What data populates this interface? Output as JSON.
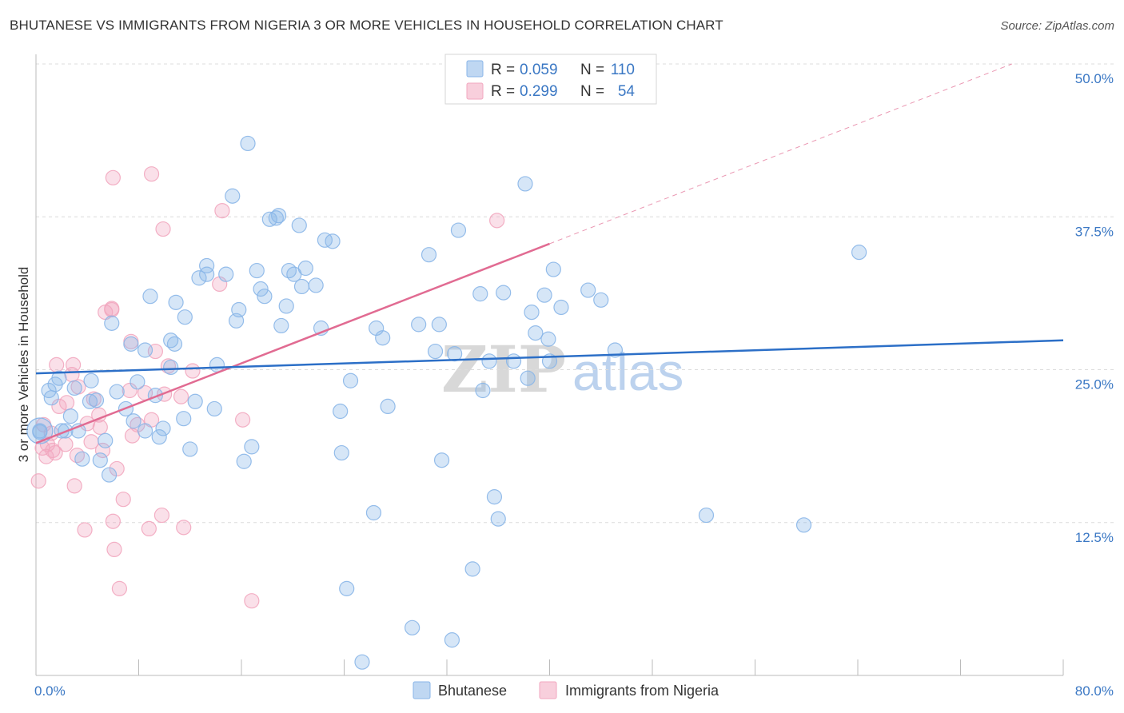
{
  "title": "BHUTANESE VS IMMIGRANTS FROM NIGERIA 3 OR MORE VEHICLES IN HOUSEHOLD CORRELATION CHART",
  "source": "Source: ZipAtlas.com",
  "watermark": {
    "part1": "ZIP",
    "part2": "atlas"
  },
  "legend_top": {
    "rows": [
      {
        "r_label": "R =",
        "r_value": "0.059",
        "n_label": "N =",
        "n_value": "110",
        "color": "#8ab6e8"
      },
      {
        "r_label": "R =",
        "r_value": "0.299",
        "n_label": "N =",
        "n_value": "54",
        "color": "#f2a7bf"
      }
    ]
  },
  "legend_bottom": [
    {
      "label": "Bhutanese",
      "color": "#8ab6e8"
    },
    {
      "label": "Immigrants from Nigeria",
      "color": "#f2a7bf"
    }
  ],
  "chart_data": {
    "type": "scatter",
    "xlabel": "",
    "ylabel": "3 or more Vehicles in Household",
    "xlim": [
      0,
      80
    ],
    "ylim": [
      0,
      50
    ],
    "x_tick_labels": [
      "0.0%",
      "80.0%"
    ],
    "y_tick_labels": [
      "12.5%",
      "25.0%",
      "37.5%",
      "50.0%"
    ],
    "y_ticks": [
      12.5,
      25.0,
      37.5,
      50.0
    ],
    "grid": true,
    "legend_position": "top-center",
    "series": [
      {
        "name": "Bhutanese",
        "color": "#8ab6e8",
        "line_color": "#2c6fc7",
        "trend": {
          "x0": 0,
          "y0": 24.7,
          "x1": 80,
          "y1": 27.4
        },
        "points": [
          [
            0.3,
            19.9
          ],
          [
            1.0,
            23.3
          ],
          [
            1.2,
            22.7
          ],
          [
            1.5,
            23.8
          ],
          [
            1.8,
            24.3
          ],
          [
            2.0,
            20.0
          ],
          [
            2.3,
            20.0
          ],
          [
            2.7,
            21.2
          ],
          [
            3.0,
            23.5
          ],
          [
            3.3,
            20.0
          ],
          [
            3.6,
            17.7
          ],
          [
            4.2,
            22.4
          ],
          [
            4.3,
            24.1
          ],
          [
            4.7,
            22.5
          ],
          [
            5.0,
            17.6
          ],
          [
            5.4,
            19.2
          ],
          [
            5.7,
            16.4
          ],
          [
            5.9,
            28.8
          ],
          [
            6.3,
            23.2
          ],
          [
            7.0,
            21.8
          ],
          [
            7.4,
            27.1
          ],
          [
            7.6,
            20.8
          ],
          [
            7.9,
            24.0
          ],
          [
            8.5,
            26.6
          ],
          [
            8.5,
            20.0
          ],
          [
            8.9,
            31.0
          ],
          [
            9.3,
            22.9
          ],
          [
            9.6,
            19.5
          ],
          [
            9.9,
            20.2
          ],
          [
            10.5,
            25.2
          ],
          [
            10.5,
            27.4
          ],
          [
            10.8,
            27.1
          ],
          [
            10.9,
            30.5
          ],
          [
            11.5,
            21.0
          ],
          [
            11.6,
            29.3
          ],
          [
            12.0,
            18.5
          ],
          [
            12.4,
            22.4
          ],
          [
            12.7,
            32.5
          ],
          [
            13.3,
            32.8
          ],
          [
            13.3,
            33.5
          ],
          [
            13.9,
            21.8
          ],
          [
            14.1,
            25.4
          ],
          [
            14.8,
            32.8
          ],
          [
            15.3,
            39.2
          ],
          [
            15.6,
            29.0
          ],
          [
            15.8,
            29.9
          ],
          [
            16.2,
            17.5
          ],
          [
            16.5,
            43.5
          ],
          [
            16.8,
            18.7
          ],
          [
            17.2,
            33.1
          ],
          [
            17.5,
            31.6
          ],
          [
            17.8,
            31.0
          ],
          [
            18.2,
            37.3
          ],
          [
            18.7,
            37.4
          ],
          [
            18.9,
            37.6
          ],
          [
            19.1,
            28.6
          ],
          [
            19.5,
            30.2
          ],
          [
            19.7,
            33.1
          ],
          [
            20.1,
            32.8
          ],
          [
            20.5,
            36.8
          ],
          [
            20.7,
            31.8
          ],
          [
            21.0,
            33.3
          ],
          [
            21.8,
            31.9
          ],
          [
            22.2,
            28.4
          ],
          [
            22.5,
            35.6
          ],
          [
            23.1,
            35.5
          ],
          [
            23.7,
            21.6
          ],
          [
            23.8,
            18.2
          ],
          [
            24.2,
            7.1
          ],
          [
            24.5,
            24.1
          ],
          [
            25.4,
            1.1
          ],
          [
            26.3,
            13.3
          ],
          [
            26.5,
            28.4
          ],
          [
            27.0,
            27.6
          ],
          [
            27.4,
            22.0
          ],
          [
            29.3,
            3.9
          ],
          [
            29.8,
            28.7
          ],
          [
            30.6,
            34.4
          ],
          [
            31.1,
            26.5
          ],
          [
            31.4,
            28.7
          ],
          [
            31.6,
            17.6
          ],
          [
            32.4,
            2.9
          ],
          [
            32.6,
            26.3
          ],
          [
            32.9,
            36.4
          ],
          [
            34.0,
            8.7
          ],
          [
            34.6,
            31.2
          ],
          [
            34.8,
            23.3
          ],
          [
            35.3,
            25.7
          ],
          [
            35.7,
            14.6
          ],
          [
            36.0,
            12.8
          ],
          [
            36.4,
            31.3
          ],
          [
            37.2,
            25.7
          ],
          [
            38.1,
            40.2
          ],
          [
            38.3,
            24.3
          ],
          [
            38.6,
            29.7
          ],
          [
            38.9,
            28.0
          ],
          [
            39.6,
            31.1
          ],
          [
            39.9,
            27.5
          ],
          [
            40.0,
            25.7
          ],
          [
            40.3,
            33.2
          ],
          [
            40.9,
            30.1
          ],
          [
            43.0,
            31.5
          ],
          [
            44.0,
            30.7
          ],
          [
            45.1,
            26.6
          ],
          [
            52.2,
            13.1
          ],
          [
            59.8,
            12.3
          ],
          [
            64.1,
            34.6
          ],
          [
            0.3,
            20.0
          ]
        ]
      },
      {
        "name": "Immigrants from Nigeria",
        "color": "#f2a7bf",
        "line_color": "#e16b92",
        "trend": {
          "x0": 0,
          "y0": 19.0,
          "x1": 40,
          "y1": 35.3
        },
        "trend_ext": {
          "x0": 40,
          "y0": 35.3,
          "x1": 76,
          "y1": 50.0
        },
        "points": [
          [
            0.2,
            15.9
          ],
          [
            0.5,
            18.6
          ],
          [
            0.6,
            20.5
          ],
          [
            0.8,
            17.9
          ],
          [
            0.9,
            18.9
          ],
          [
            1.2,
            19.8
          ],
          [
            1.3,
            18.4
          ],
          [
            1.5,
            18.2
          ],
          [
            1.6,
            25.4
          ],
          [
            1.8,
            22.0
          ],
          [
            2.3,
            18.9
          ],
          [
            2.4,
            22.3
          ],
          [
            2.8,
            24.6
          ],
          [
            2.9,
            25.4
          ],
          [
            3.0,
            15.5
          ],
          [
            3.2,
            18.0
          ],
          [
            3.3,
            23.6
          ],
          [
            3.8,
            11.9
          ],
          [
            4.0,
            20.6
          ],
          [
            4.3,
            19.1
          ],
          [
            4.5,
            22.6
          ],
          [
            4.9,
            21.3
          ],
          [
            5.0,
            20.3
          ],
          [
            5.2,
            18.4
          ],
          [
            5.4,
            29.7
          ],
          [
            5.9,
            29.9
          ],
          [
            5.9,
            30.0
          ],
          [
            6.0,
            40.7
          ],
          [
            6.0,
            12.6
          ],
          [
            6.1,
            10.3
          ],
          [
            6.3,
            16.9
          ],
          [
            6.5,
            7.1
          ],
          [
            6.8,
            14.4
          ],
          [
            7.3,
            23.3
          ],
          [
            7.4,
            27.3
          ],
          [
            7.5,
            19.6
          ],
          [
            7.9,
            20.5
          ],
          [
            8.5,
            23.1
          ],
          [
            8.8,
            12.0
          ],
          [
            9.0,
            41.0
          ],
          [
            9.0,
            20.9
          ],
          [
            9.3,
            26.5
          ],
          [
            9.8,
            13.1
          ],
          [
            9.9,
            36.5
          ],
          [
            10.0,
            23.0
          ],
          [
            10.3,
            25.3
          ],
          [
            11.3,
            22.8
          ],
          [
            11.5,
            12.1
          ],
          [
            12.2,
            24.9
          ],
          [
            14.3,
            32.0
          ],
          [
            14.5,
            38.0
          ],
          [
            16.1,
            20.9
          ],
          [
            16.8,
            6.1
          ],
          [
            35.9,
            37.2
          ]
        ]
      }
    ]
  }
}
